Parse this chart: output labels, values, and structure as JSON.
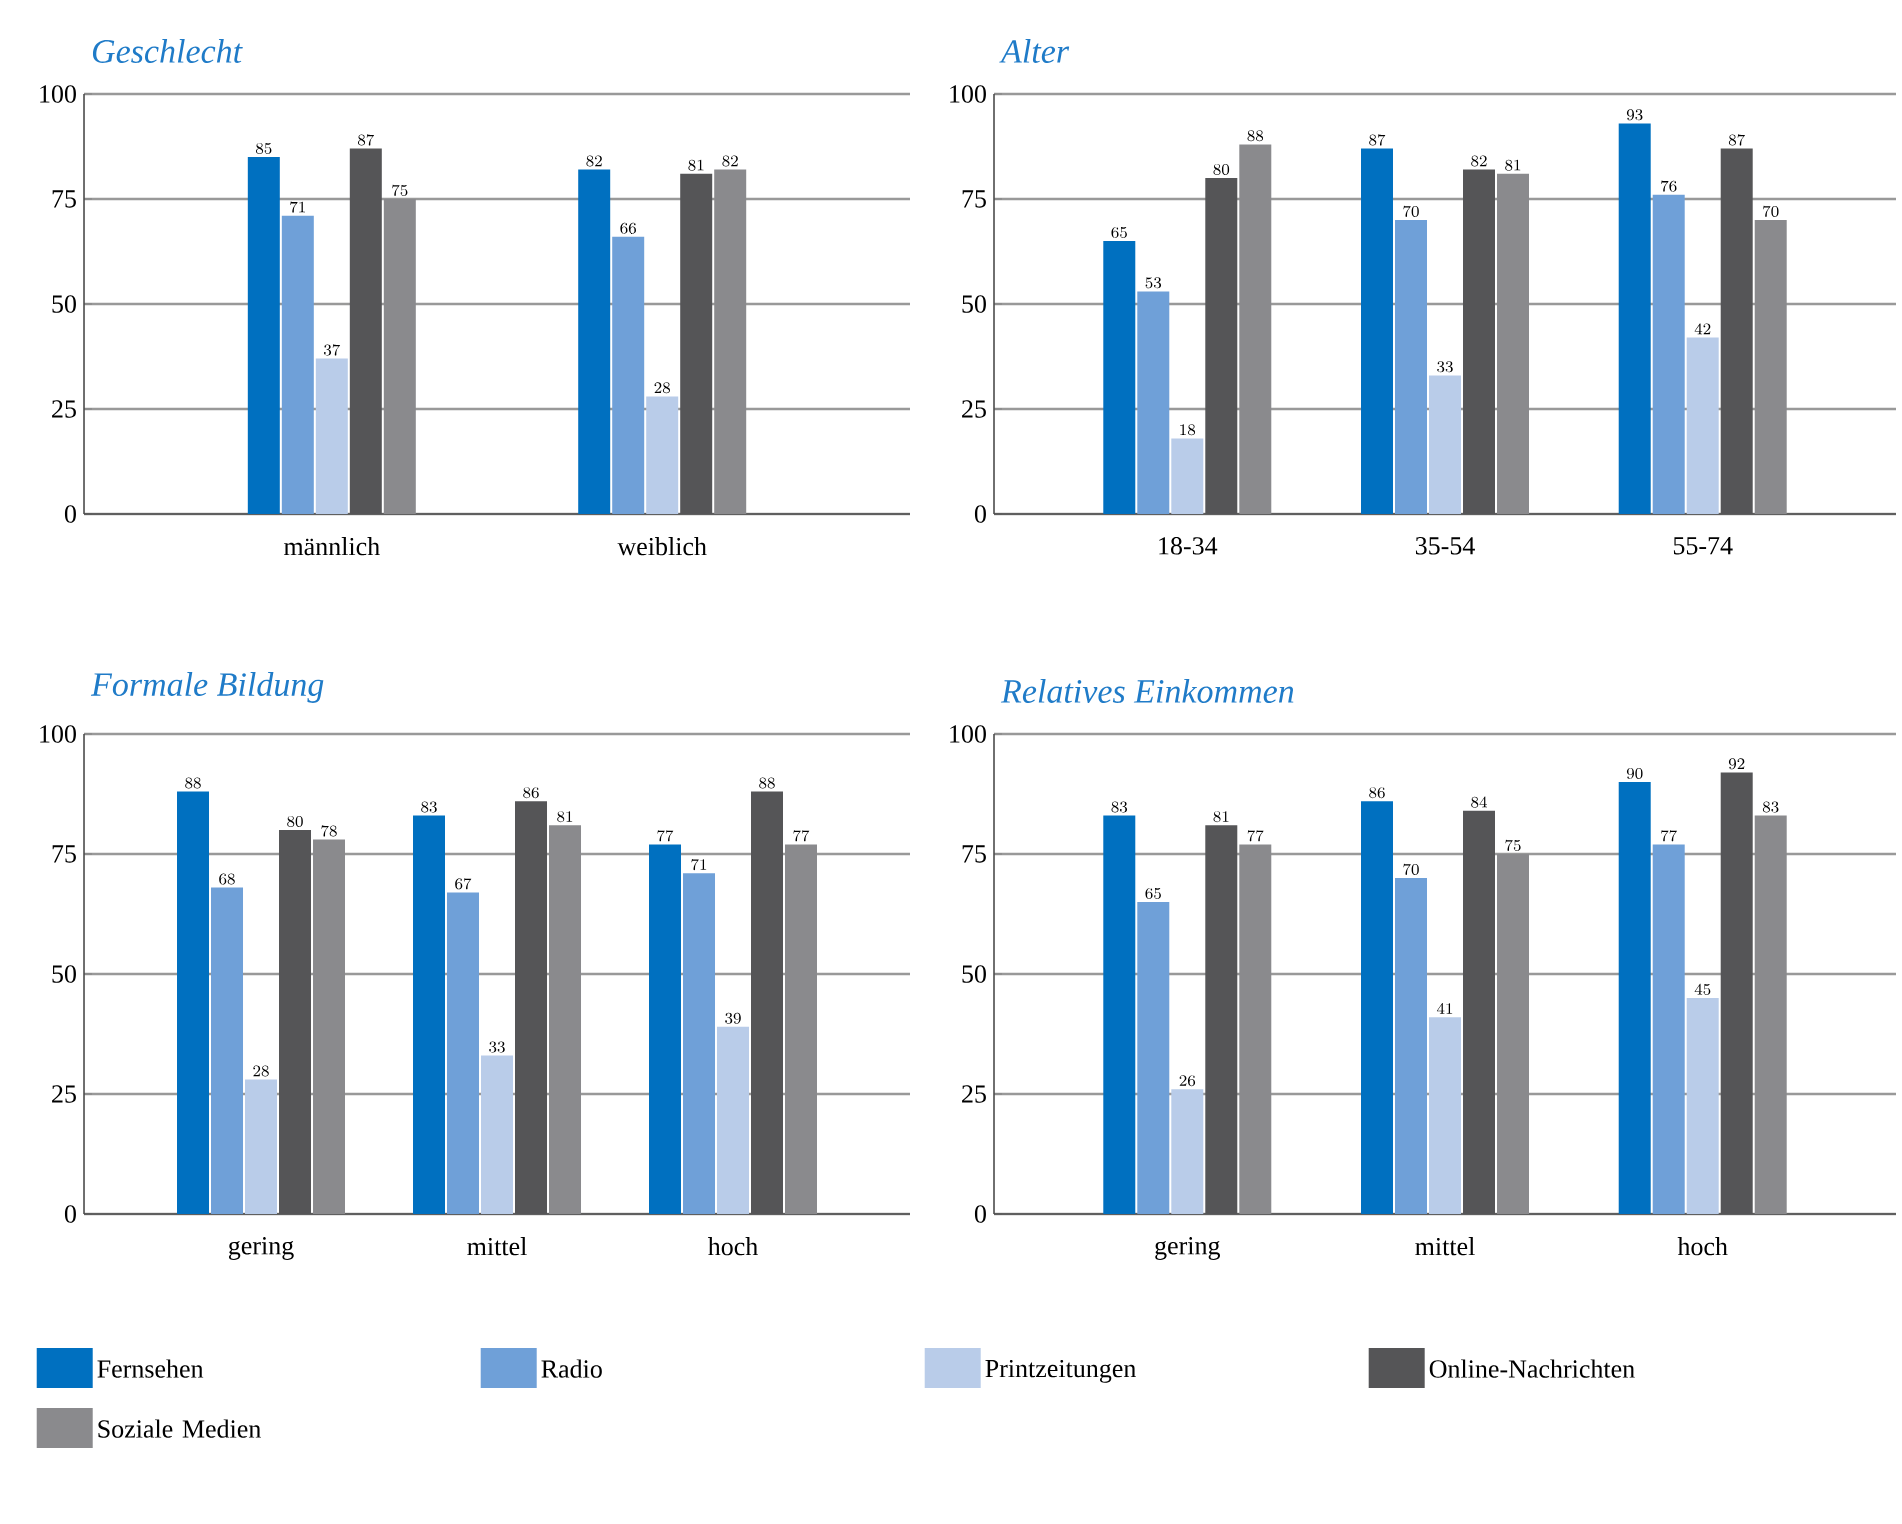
{
  "chart_data": [
    {
      "type": "bar",
      "title": "Geschlecht",
      "categories": [
        "männlich",
        "weiblich"
      ],
      "ylim": [
        0,
        100
      ],
      "yticks": [
        0,
        25,
        50,
        75,
        100
      ],
      "grid": "y",
      "data_labels": true,
      "series": [
        {
          "color": "#0070c0",
          "values": [
            85,
            82
          ]
        },
        {
          "color": "#6fa0d8",
          "values": [
            71,
            66
          ]
        },
        {
          "color": "#b9cce9",
          "values": [
            37,
            28
          ]
        },
        {
          "color": "#555557",
          "values": [
            87,
            81
          ]
        },
        {
          "color": "#8a8a8d",
          "values": [
            75,
            82
          ]
        }
      ]
    },
    {
      "type": "bar",
      "title": "Alter",
      "categories": [
        "18-34",
        "35-54",
        "55-74"
      ],
      "ylim": [
        0,
        100
      ],
      "yticks": [
        0,
        25,
        50,
        75,
        100
      ],
      "grid": "y",
      "data_labels": true,
      "series": [
        {
          "color": "#0070c0",
          "values": [
            65,
            87,
            93
          ]
        },
        {
          "color": "#6fa0d8",
          "values": [
            53,
            70,
            76
          ]
        },
        {
          "color": "#b9cce9",
          "values": [
            18,
            33,
            42
          ]
        },
        {
          "color": "#555557",
          "values": [
            80,
            82,
            87
          ]
        },
        {
          "color": "#8a8a8d",
          "values": [
            88,
            81,
            70
          ]
        }
      ]
    },
    {
      "type": "bar",
      "title": "Formale Bildung",
      "categories": [
        "gering",
        "mittel",
        "hoch"
      ],
      "ylim": [
        0,
        100
      ],
      "yticks": [
        0,
        25,
        50,
        75,
        100
      ],
      "grid": "y",
      "data_labels": true,
      "legend": "bottom",
      "series": [
        {
          "name": "Fernsehen",
          "color": "#0070c0",
          "values": [
            88,
            83,
            77
          ]
        },
        {
          "name": "Radio",
          "color": "#6fa0d8",
          "values": [
            68,
            67,
            71
          ]
        },
        {
          "name": "Printzeitungen",
          "color": "#b9cce9",
          "values": [
            28,
            33,
            39
          ]
        },
        {
          "name": "Online-Nachrichten",
          "color": "#555557",
          "values": [
            80,
            86,
            88
          ]
        },
        {
          "name": "Soziale Medien",
          "color": "#8a8a8d",
          "values": [
            78,
            81,
            77
          ]
        }
      ]
    },
    {
      "type": "bar",
      "title": "Relatives Einkommen",
      "categories": [
        "gering",
        "mittel",
        "hoch"
      ],
      "ylim": [
        0,
        100
      ],
      "yticks": [
        0,
        25,
        50,
        75,
        100
      ],
      "grid": "y",
      "data_labels": true,
      "series": [
        {
          "color": "#0070c0",
          "values": [
            83,
            86,
            90
          ]
        },
        {
          "color": "#6fa0d8",
          "values": [
            65,
            70,
            77
          ]
        },
        {
          "color": "#b9cce9",
          "values": [
            26,
            41,
            45
          ]
        },
        {
          "color": "#555557",
          "values": [
            81,
            84,
            92
          ]
        },
        {
          "color": "#8a8a8d",
          "values": [
            77,
            75,
            83
          ]
        }
      ]
    }
  ]
}
